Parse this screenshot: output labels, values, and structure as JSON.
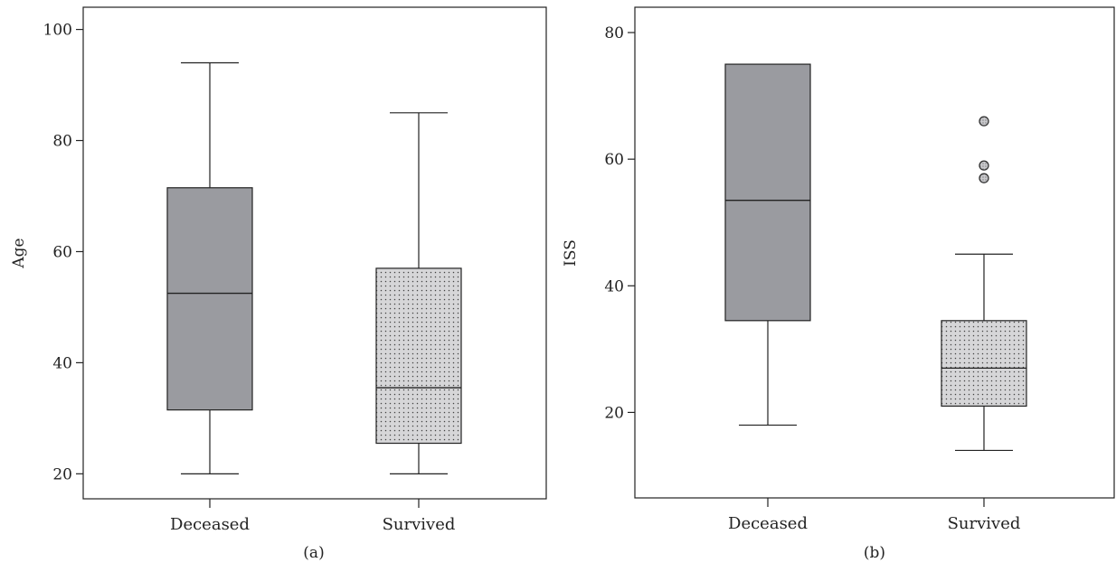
{
  "chart_data": [
    {
      "type": "box",
      "panel_label": "(a)",
      "ylabel": "Age",
      "xlabel": "",
      "ylim": [
        15.5,
        104
      ],
      "yticks": [
        20,
        40,
        60,
        80,
        100
      ],
      "categories": [
        "Deceased",
        "Survived"
      ],
      "boxes": [
        {
          "category": "Deceased",
          "min": 20,
          "q1": 31.5,
          "median": 52.5,
          "q3": 71.5,
          "max": 94,
          "outliers": [],
          "fill": "#9a9ba0",
          "pattern": "solid"
        },
        {
          "category": "Survived",
          "min": 20,
          "q1": 25.5,
          "median": 35.5,
          "q3": 57,
          "max": 85,
          "outliers": [],
          "fill": "#d8d8da",
          "pattern": "dotted"
        }
      ],
      "grid": false
    },
    {
      "type": "box",
      "panel_label": "(b)",
      "ylabel": "ISS",
      "xlabel": "",
      "ylim": [
        6.5,
        84
      ],
      "yticks": [
        20,
        40,
        60,
        80
      ],
      "categories": [
        "Deceased",
        "Survived"
      ],
      "boxes": [
        {
          "category": "Deceased",
          "min": 18,
          "q1": 34.5,
          "median": 53.5,
          "q3": 75,
          "max": 75,
          "outliers": [],
          "fill": "#9a9ba0",
          "pattern": "solid"
        },
        {
          "category": "Survived",
          "min": 14,
          "q1": 21,
          "median": 27,
          "q3": 34.5,
          "max": 45,
          "outliers": [
            57,
            59,
            66
          ],
          "fill": "#d8d8da",
          "pattern": "dotted"
        }
      ],
      "grid": false
    }
  ]
}
